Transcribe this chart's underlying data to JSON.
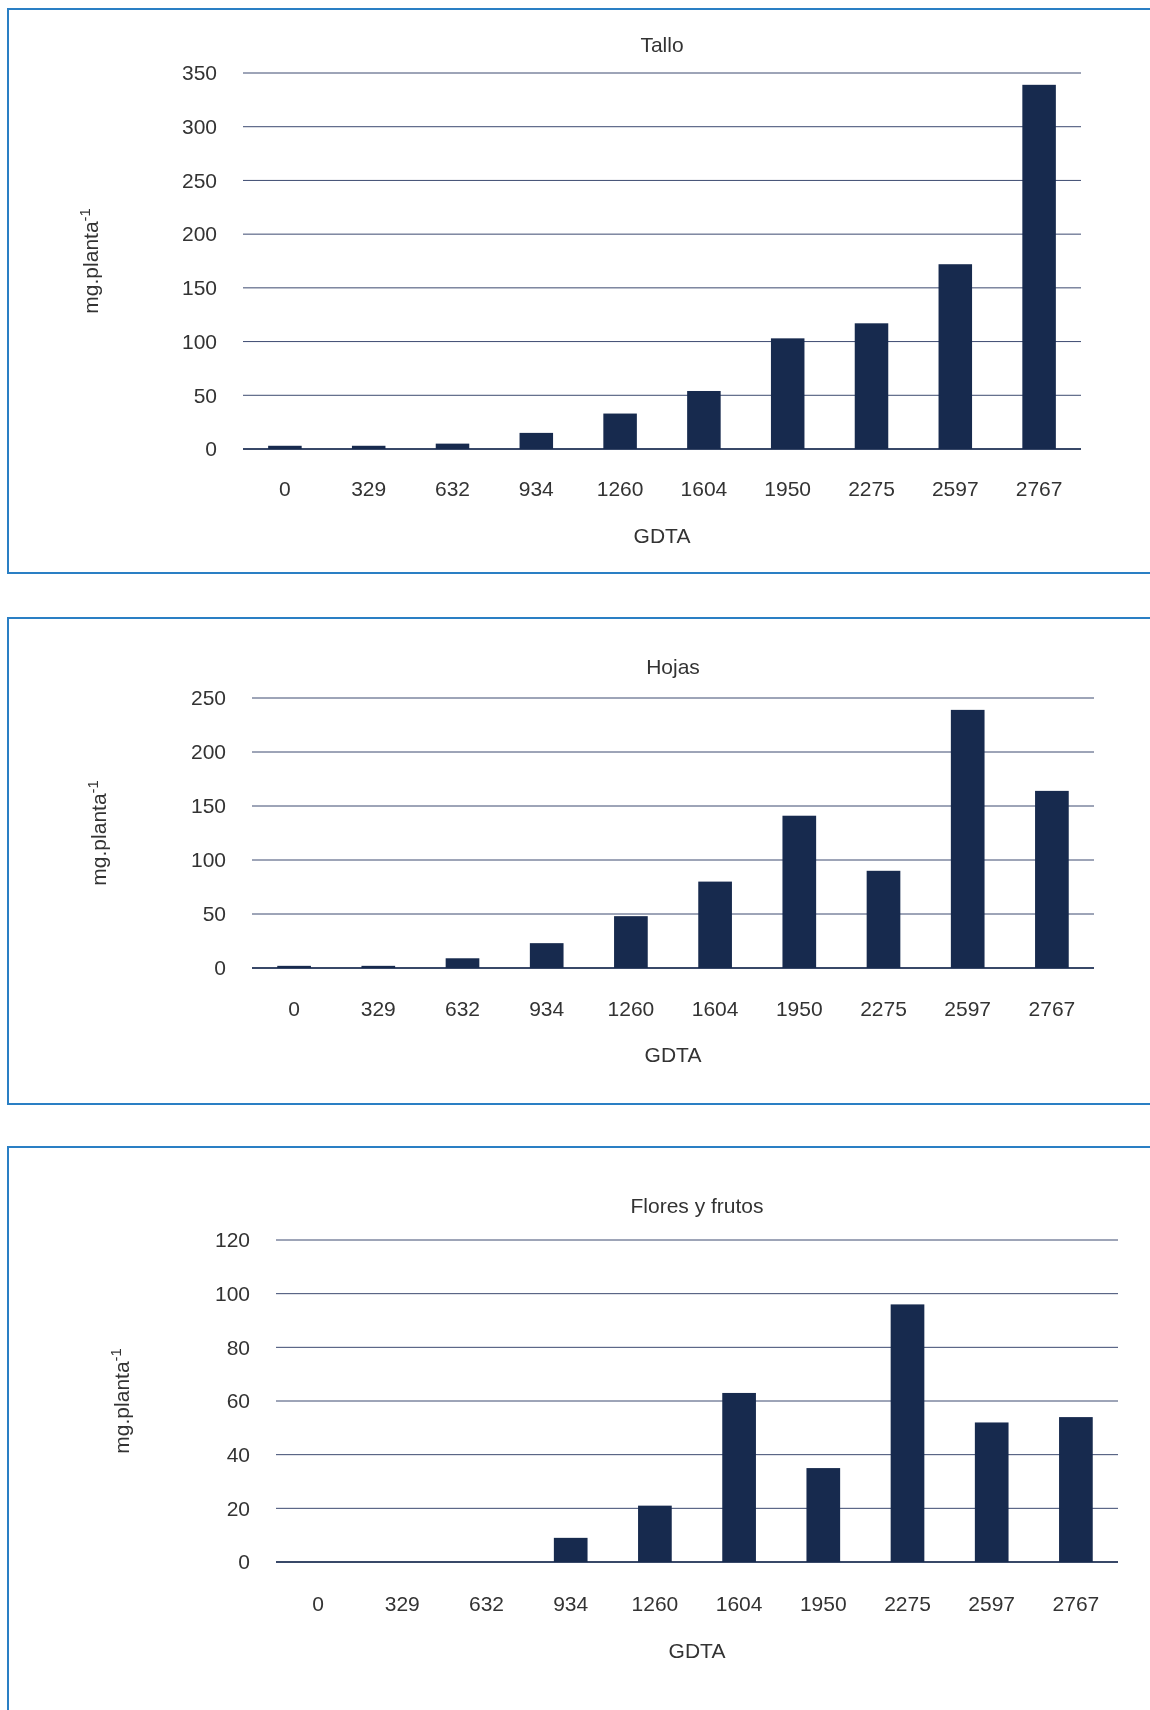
{
  "chart_data": [
    {
      "type": "bar",
      "title": "Tallo",
      "xlabel": "GDTA",
      "ylabel": "mg.planta$^{-1}$",
      "categories": [
        "0",
        "329",
        "632",
        "934",
        "1260",
        "1604",
        "1950",
        "2275",
        "2597",
        "2767"
      ],
      "values": [
        3,
        3,
        5,
        15,
        33,
        54,
        103,
        117,
        172,
        339
      ],
      "color": "#172a4e",
      "ylim": [
        0,
        350
      ],
      "yticks": [
        0,
        50,
        100,
        150,
        200,
        250,
        300,
        350
      ],
      "grid": "y"
    },
    {
      "type": "bar",
      "title": "Hojas",
      "xlabel": "GDTA",
      "ylabel": "mg.planta$^{-1}$",
      "categories": [
        "0",
        "329",
        "632",
        "934",
        "1260",
        "1604",
        "1950",
        "2275",
        "2597",
        "2767"
      ],
      "values": [
        2,
        2,
        9,
        23,
        48,
        80,
        141,
        90,
        239,
        164
      ],
      "color": "#172a4e",
      "ylim": [
        0,
        250
      ],
      "yticks": [
        0,
        50,
        100,
        150,
        200,
        250
      ],
      "grid": "y"
    },
    {
      "type": "bar",
      "title": "Flores y frutos",
      "xlabel": "GDTA",
      "ylabel": "mg.planta$^{-1}$",
      "categories": [
        "0",
        "329",
        "632",
        "934",
        "1260",
        "1604",
        "1950",
        "2275",
        "2597",
        "2767"
      ],
      "values": [
        0,
        0,
        0,
        9,
        21,
        63,
        35,
        96,
        52,
        54
      ],
      "color": "#172a4e",
      "ylim": [
        0,
        120
      ],
      "yticks": [
        0,
        20,
        40,
        60,
        80,
        100,
        120
      ],
      "grid": "y"
    }
  ]
}
